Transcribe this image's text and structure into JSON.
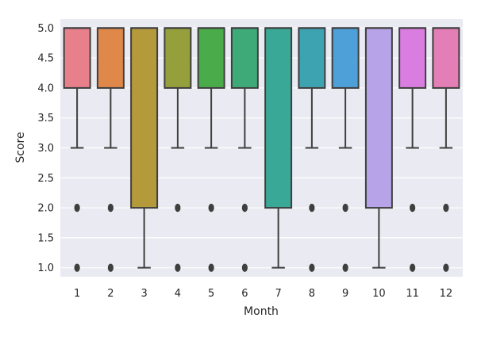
{
  "chart_data": {
    "type": "box",
    "xlabel": "Month",
    "ylabel": "Score",
    "ylim": [
      0.85,
      5.15
    ],
    "yticks": [
      "1.0",
      "1.5",
      "2.0",
      "2.5",
      "3.0",
      "3.5",
      "4.0",
      "4.5",
      "5.0"
    ],
    "grid": true,
    "background": "#eaeaf2",
    "categories": [
      "1",
      "2",
      "3",
      "4",
      "5",
      "6",
      "7",
      "8",
      "9",
      "10",
      "11",
      "12"
    ],
    "boxes": [
      {
        "month": "1",
        "q1": 4,
        "median": 5,
        "q3": 5,
        "whisker_low": 3,
        "whisker_high": 5,
        "outliers": [
          1,
          2
        ],
        "color": "#e8808c"
      },
      {
        "month": "2",
        "q1": 4,
        "median": 5,
        "q3": 5,
        "whisker_low": 3,
        "whisker_high": 5,
        "outliers": [
          1,
          2
        ],
        "color": "#e0884a"
      },
      {
        "month": "3",
        "q1": 2,
        "median": 5,
        "q3": 5,
        "whisker_low": 1,
        "whisker_high": 5,
        "outliers": [],
        "color": "#b59a3c"
      },
      {
        "month": "4",
        "q1": 4,
        "median": 5,
        "q3": 5,
        "whisker_low": 3,
        "whisker_high": 5,
        "outliers": [
          1,
          2
        ],
        "color": "#95a03c"
      },
      {
        "month": "5",
        "q1": 4,
        "median": 5,
        "q3": 5,
        "whisker_low": 3,
        "whisker_high": 5,
        "outliers": [
          1,
          2
        ],
        "color": "#4aab4a"
      },
      {
        "month": "6",
        "q1": 4,
        "median": 5,
        "q3": 5,
        "whisker_low": 3,
        "whisker_high": 5,
        "outliers": [
          1,
          2
        ],
        "color": "#3eaa78"
      },
      {
        "month": "7",
        "q1": 2,
        "median": 5,
        "q3": 5,
        "whisker_low": 1,
        "whisker_high": 5,
        "outliers": [],
        "color": "#3aa896"
      },
      {
        "month": "8",
        "q1": 4,
        "median": 5,
        "q3": 5,
        "whisker_low": 3,
        "whisker_high": 5,
        "outliers": [
          1,
          2
        ],
        "color": "#3ea3b0"
      },
      {
        "month": "9",
        "q1": 4,
        "median": 5,
        "q3": 5,
        "whisker_low": 3,
        "whisker_high": 5,
        "outliers": [
          1,
          2
        ],
        "color": "#4ea0d8"
      },
      {
        "month": "10",
        "q1": 2,
        "median": 5,
        "q3": 5,
        "whisker_low": 1,
        "whisker_high": 5,
        "outliers": [],
        "color": "#b7a4e8"
      },
      {
        "month": "11",
        "q1": 4,
        "median": 5,
        "q3": 5,
        "whisker_low": 3,
        "whisker_high": 5,
        "outliers": [
          1,
          2
        ],
        "color": "#d97ee0"
      },
      {
        "month": "12",
        "q1": 4,
        "median": 5,
        "q3": 5,
        "whisker_low": 3,
        "whisker_high": 5,
        "outliers": [
          1,
          2
        ],
        "color": "#e47eb6"
      }
    ]
  }
}
